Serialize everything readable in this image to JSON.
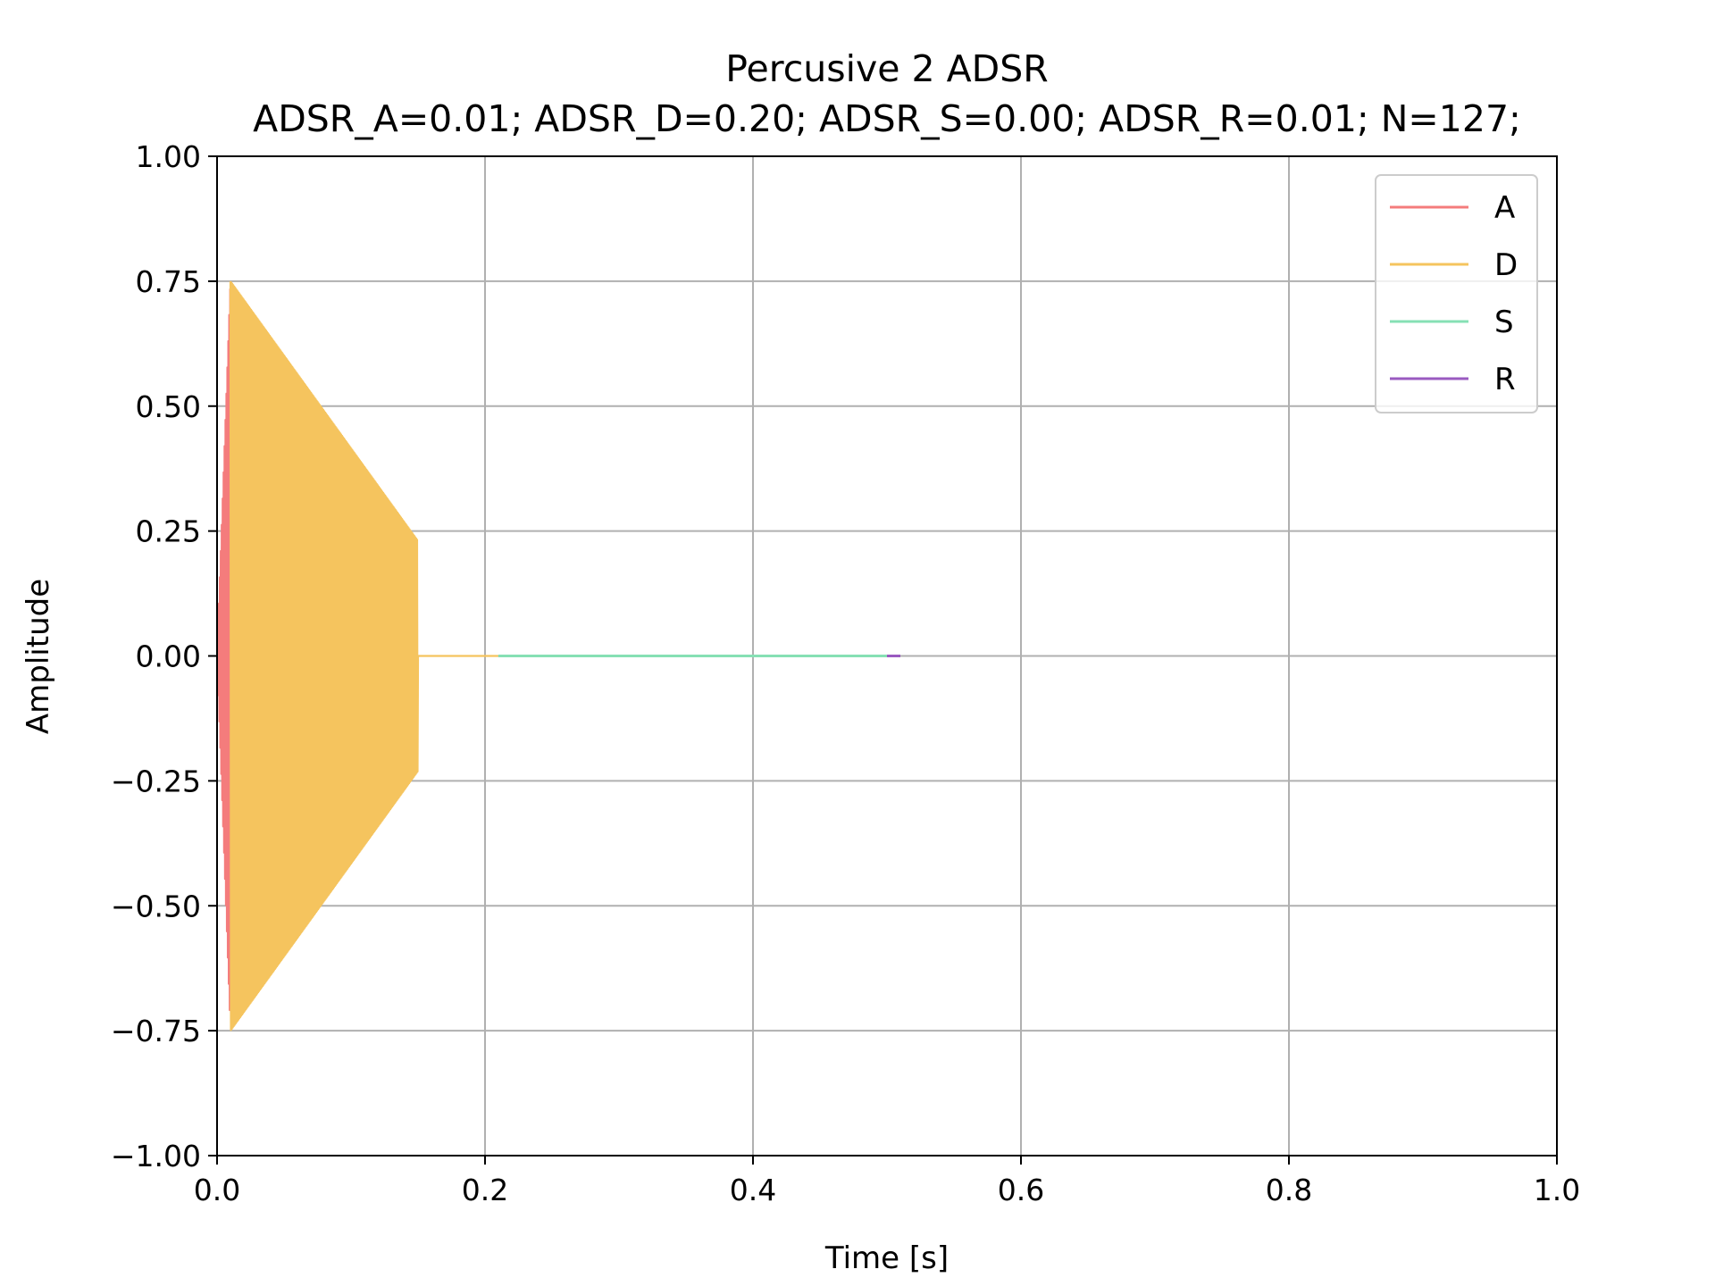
{
  "chart_data": {
    "type": "line",
    "title": "Percusive 2 ADSR",
    "subtitle": "ADSR_A=0.01; ADSR_D=0.20; ADSR_S=0.00; ADSR_R=0.01; N=127;",
    "xlabel": "Time [s]",
    "ylabel": "Amplitude",
    "xlim": [
      0.0,
      1.0
    ],
    "ylim": [
      -1.0,
      1.0
    ],
    "xticks": [
      0.0,
      0.2,
      0.4,
      0.6,
      0.8,
      1.0
    ],
    "xtick_labels": [
      "0.0",
      "0.2",
      "0.4",
      "0.6",
      "0.8",
      "1.0"
    ],
    "yticks": [
      -1.0,
      -0.75,
      -0.5,
      -0.25,
      0.0,
      0.25,
      0.5,
      0.75,
      1.0
    ],
    "ytick_labels": [
      "−1.00",
      "−0.75",
      "−0.50",
      "−0.25",
      "0.00",
      "0.25",
      "0.50",
      "0.75",
      "1.00"
    ],
    "grid": true,
    "legend_position": "top-right",
    "series": [
      {
        "name": "A",
        "color": "#f47c7c",
        "style": "oscillating-envelope",
        "envelope": [
          {
            "x": 0.0,
            "y": 0.0
          },
          {
            "x": 0.01,
            "y": 0.75
          }
        ]
      },
      {
        "name": "D",
        "color": "#f5c45e",
        "style": "oscillating-envelope",
        "envelope": [
          {
            "x": 0.01,
            "y": 0.75
          },
          {
            "x": 0.15,
            "y": 0.23
          },
          {
            "x": 0.15,
            "y": 0.0
          },
          {
            "x": 0.21,
            "y": 0.0
          }
        ]
      },
      {
        "name": "S",
        "color": "#86e0b4",
        "style": "line",
        "points": [
          {
            "x": 0.21,
            "y": 0.0
          },
          {
            "x": 0.5,
            "y": 0.0
          }
        ]
      },
      {
        "name": "R",
        "color": "#9a5ac0",
        "style": "line",
        "points": [
          {
            "x": 0.5,
            "y": 0.0
          },
          {
            "x": 0.51,
            "y": 0.0
          }
        ]
      }
    ]
  }
}
